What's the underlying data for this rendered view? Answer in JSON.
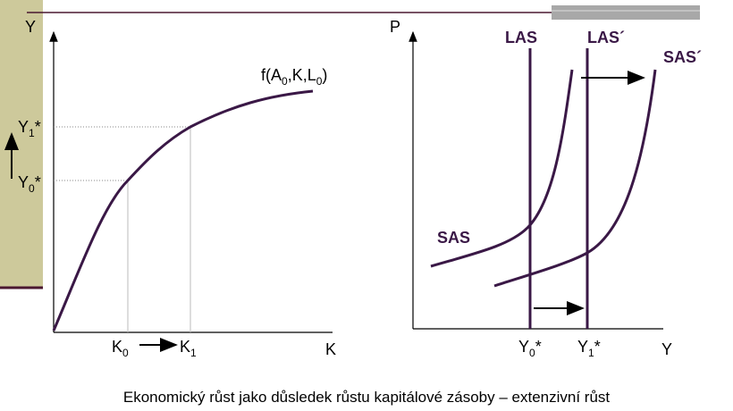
{
  "left_graph": {
    "y_axis": "Y",
    "x_axis": "K",
    "curve_label": [
      "f(A",
      "0",
      ",K,L",
      "0",
      ")"
    ],
    "y1": [
      "Y",
      "1",
      "*"
    ],
    "y0": [
      "Y",
      "0",
      "*"
    ],
    "k0": [
      "K",
      "0",
      ""
    ],
    "k1": [
      "K",
      "1",
      ""
    ]
  },
  "right_graph": {
    "y_axis": "P",
    "x_axis": "Y",
    "las": "LAS",
    "las_shifted": "LAS´",
    "sas": "SAS",
    "sas_shifted": "SAS´",
    "y0": [
      "Y",
      "0",
      "*"
    ],
    "y1": [
      "Y",
      "1",
      "*"
    ]
  },
  "caption": "Ekonomický růst jako důsledek růstu kapitálové zásoby – extenzivní růst"
}
